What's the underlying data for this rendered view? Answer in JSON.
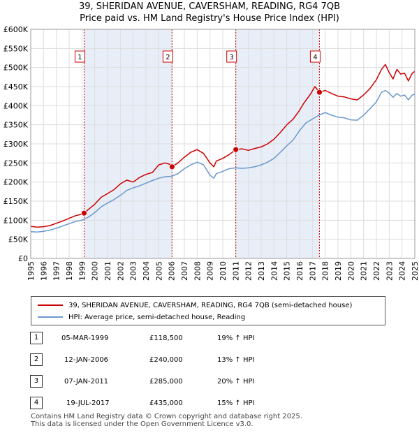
{
  "header": {
    "title_line1": "39, SHERIDAN AVENUE, CAVERSHAM, READING, RG4 7QB",
    "title_line2": "Price paid vs. HM Land Registry's House Price Index (HPI)"
  },
  "colors": {
    "property": "#cc0000",
    "hpi": "#6a99cc",
    "shade": "#e8eef8",
    "marker_line": "#cc0000"
  },
  "chart_data": {
    "type": "line",
    "title": "Price paid vs. HM Land Registry's House Price Index (HPI)",
    "xlabel": "",
    "ylabel": "",
    "xlim": [
      1995,
      2025
    ],
    "ylim": [
      0,
      600000
    ],
    "y_ticks": [
      0,
      50000,
      100000,
      150000,
      200000,
      250000,
      300000,
      350000,
      400000,
      450000,
      500000,
      550000,
      600000
    ],
    "y_tick_labels": [
      "£0",
      "£50K",
      "£100K",
      "£150K",
      "£200K",
      "£250K",
      "£300K",
      "£350K",
      "£400K",
      "£450K",
      "£500K",
      "£550K",
      "£600K"
    ],
    "x_ticks": [
      1995,
      1996,
      1997,
      1998,
      1999,
      2000,
      2001,
      2002,
      2003,
      2004,
      2005,
      2006,
      2007,
      2008,
      2009,
      2010,
      2011,
      2012,
      2013,
      2014,
      2015,
      2016,
      2017,
      2018,
      2019,
      2020,
      2021,
      2022,
      2023,
      2024,
      2025
    ],
    "grid": true,
    "shaded_ranges": [
      [
        1999.17,
        2006.04
      ],
      [
        2011.02,
        2017.55
      ]
    ],
    "series": [
      {
        "name": "39, SHERIDAN AVENUE, CAVERSHAM, READING, RG4 7QB (semi-detached house)",
        "color": "#cc0000",
        "x": [
          1995.0,
          1995.5,
          1996.0,
          1996.5,
          1997.0,
          1997.5,
          1998.0,
          1998.5,
          1999.0,
          1999.17,
          1999.5,
          2000.0,
          2000.5,
          2001.0,
          2001.5,
          2002.0,
          2002.5,
          2003.0,
          2003.5,
          2004.0,
          2004.5,
          2005.0,
          2005.5,
          2005.9,
          2006.04,
          2006.5,
          2007.0,
          2007.5,
          2008.0,
          2008.5,
          2009.0,
          2009.3,
          2009.5,
          2010.0,
          2010.5,
          2011.02,
          2011.5,
          2012.0,
          2012.5,
          2013.0,
          2013.5,
          2014.0,
          2014.5,
          2015.0,
          2015.5,
          2016.0,
          2016.3,
          2016.8,
          2017.2,
          2017.55,
          2018.0,
          2018.5,
          2019.0,
          2019.5,
          2020.0,
          2020.5,
          2021.0,
          2021.5,
          2022.0,
          2022.4,
          2022.7,
          2023.0,
          2023.3,
          2023.6,
          2023.9,
          2024.2,
          2024.5,
          2024.8,
          2025.0
        ],
        "values": [
          84000,
          82000,
          83000,
          86000,
          92000,
          98000,
          105000,
          112000,
          116000,
          118500,
          128000,
          142000,
          160000,
          170000,
          180000,
          195000,
          205000,
          200000,
          212000,
          220000,
          225000,
          245000,
          250000,
          246000,
          240000,
          250000,
          265000,
          278000,
          285000,
          275000,
          250000,
          240000,
          255000,
          262000,
          272000,
          285000,
          287000,
          283000,
          288000,
          292000,
          300000,
          312000,
          330000,
          350000,
          365000,
          388000,
          405000,
          428000,
          450000,
          435000,
          440000,
          432000,
          425000,
          423000,
          418000,
          415000,
          428000,
          445000,
          468000,
          495000,
          508000,
          487000,
          470000,
          495000,
          483000,
          485000,
          465000,
          485000,
          490000
        ]
      },
      {
        "name": "HPI: Average price, semi-detached house, Reading",
        "color": "#6a99cc",
        "x": [
          1995.0,
          1995.5,
          1996.0,
          1996.5,
          1997.0,
          1997.5,
          1998.0,
          1998.5,
          1999.0,
          1999.5,
          2000.0,
          2000.5,
          2001.0,
          2001.5,
          2002.0,
          2002.5,
          2003.0,
          2003.5,
          2004.0,
          2004.5,
          2005.0,
          2005.5,
          2006.0,
          2006.5,
          2007.0,
          2007.5,
          2008.0,
          2008.5,
          2009.0,
          2009.3,
          2009.5,
          2010.0,
          2010.5,
          2011.0,
          2011.5,
          2012.0,
          2012.5,
          2013.0,
          2013.5,
          2014.0,
          2014.5,
          2015.0,
          2015.5,
          2016.0,
          2016.5,
          2017.0,
          2017.5,
          2018.0,
          2018.5,
          2019.0,
          2019.5,
          2020.0,
          2020.5,
          2021.0,
          2021.5,
          2022.0,
          2022.4,
          2022.7,
          2023.0,
          2023.3,
          2023.6,
          2023.9,
          2024.2,
          2024.5,
          2024.8,
          2025.0
        ],
        "values": [
          70000,
          69000,
          71000,
          74000,
          79000,
          85000,
          91000,
          97000,
          100000,
          108000,
          120000,
          135000,
          145000,
          154000,
          165000,
          178000,
          185000,
          190000,
          197000,
          204000,
          210000,
          214000,
          215000,
          222000,
          235000,
          245000,
          252000,
          245000,
          218000,
          210000,
          222000,
          228000,
          235000,
          237000,
          236000,
          237000,
          240000,
          245000,
          252000,
          262000,
          278000,
          295000,
          310000,
          335000,
          355000,
          365000,
          375000,
          382000,
          375000,
          370000,
          368000,
          363000,
          362000,
          375000,
          392000,
          410000,
          435000,
          440000,
          433000,
          422000,
          432000,
          425000,
          428000,
          415000,
          428000,
          430000
        ]
      }
    ],
    "annotations": [
      {
        "label": "1",
        "x": 1999.17,
        "value": 118500
      },
      {
        "label": "2",
        "x": 2006.04,
        "value": 240000
      },
      {
        "label": "3",
        "x": 2011.02,
        "value": 285000
      },
      {
        "label": "4",
        "x": 2017.55,
        "value": 435000
      }
    ]
  },
  "legend": {
    "property_label": "39, SHERIDAN AVENUE, CAVERSHAM, READING, RG4 7QB (semi-detached house)",
    "hpi_label": "HPI: Average price, semi-detached house, Reading"
  },
  "transactions": [
    {
      "num": "1",
      "date": "05-MAR-1999",
      "price": "£118,500",
      "hpi": "19% ↑ HPI"
    },
    {
      "num": "2",
      "date": "12-JAN-2006",
      "price": "£240,000",
      "hpi": "13% ↑ HPI"
    },
    {
      "num": "3",
      "date": "07-JAN-2011",
      "price": "£285,000",
      "hpi": "20% ↑ HPI"
    },
    {
      "num": "4",
      "date": "19-JUL-2017",
      "price": "£435,000",
      "hpi": "15% ↑ HPI"
    }
  ],
  "footer": {
    "line1": "Contains HM Land Registry data © Crown copyright and database right 2025.",
    "line2": "This data is licensed under the Open Government Licence v3.0."
  }
}
